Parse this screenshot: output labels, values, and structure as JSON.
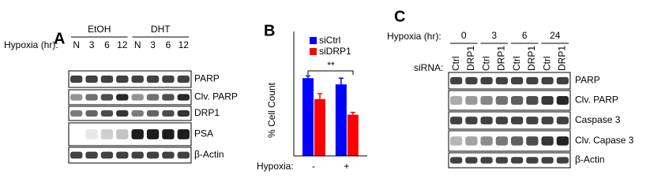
{
  "panel_a": {
    "label": "A",
    "groups": [
      "EtOH",
      "DHT"
    ],
    "row_label": "Hypoxia (hr):",
    "lanes": [
      "N",
      "3",
      "6",
      "12",
      "N",
      "3",
      "6",
      "12"
    ],
    "blots": [
      "PARP",
      "Clv. PARP",
      "DRP1",
      "PSA",
      "β-Actin"
    ]
  },
  "chart_data": {
    "type": "bar",
    "panel_label": "B",
    "ylabel": "% Cell Count",
    "xlabel": "Hypoxia:",
    "categories": [
      "-",
      "+"
    ],
    "series": [
      {
        "name": "siCtrl",
        "color": "#0000ff",
        "values": [
          100,
          92
        ],
        "errors": [
          3,
          8
        ]
      },
      {
        "name": "siDRP1",
        "color": "#ff0000",
        "values": [
          73,
          53
        ],
        "errors": [
          7,
          3
        ]
      }
    ],
    "ylim": [
      0,
      160
    ],
    "annotation": "**"
  },
  "panel_c": {
    "label": "C",
    "row_label": "Hypoxia (hr):",
    "timepoints": [
      "0",
      "3",
      "6",
      "24"
    ],
    "sirna_label": "siRNA:",
    "lanes": [
      "Ctrl",
      "DRP1",
      "Ctrl",
      "DRP1",
      "Ctrl",
      "DRP1",
      "Ctrl",
      "DRP1"
    ],
    "blots": [
      "PARP",
      "Clv. PARP",
      "Caspase 3",
      "Clv. Capase 3",
      "β-Actin"
    ]
  }
}
